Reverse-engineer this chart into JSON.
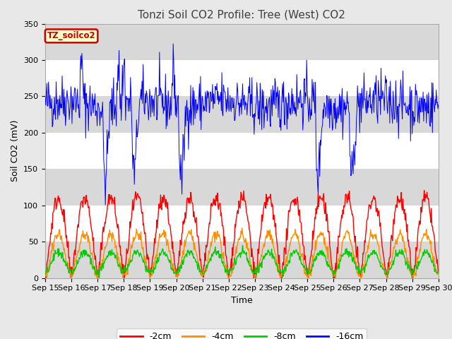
{
  "title": "Tonzi Soil CO2 Profile: Tree (West) CO2",
  "ylabel": "Soil CO2 (mV)",
  "xlabel": "Time",
  "legend_label": "TZ_soilco2",
  "series_labels": [
    "-2cm",
    "-4cm",
    "-8cm",
    "-16cm"
  ],
  "series_colors": [
    "#ff0000",
    "#ff8c00",
    "#00cc00",
    "#0000ff"
  ],
  "ylim": [
    0,
    350
  ],
  "yticks": [
    0,
    50,
    100,
    150,
    200,
    250,
    300,
    350
  ],
  "n_days": 15,
  "n_points_per_day": 48,
  "seed": 42,
  "fig_bg_color": "#e8e8e8",
  "plot_bg_color": "#ffffff",
  "band_color": "#d8d8d8",
  "title_fontsize": 11,
  "axis_fontsize": 9,
  "tick_fontsize": 8
}
